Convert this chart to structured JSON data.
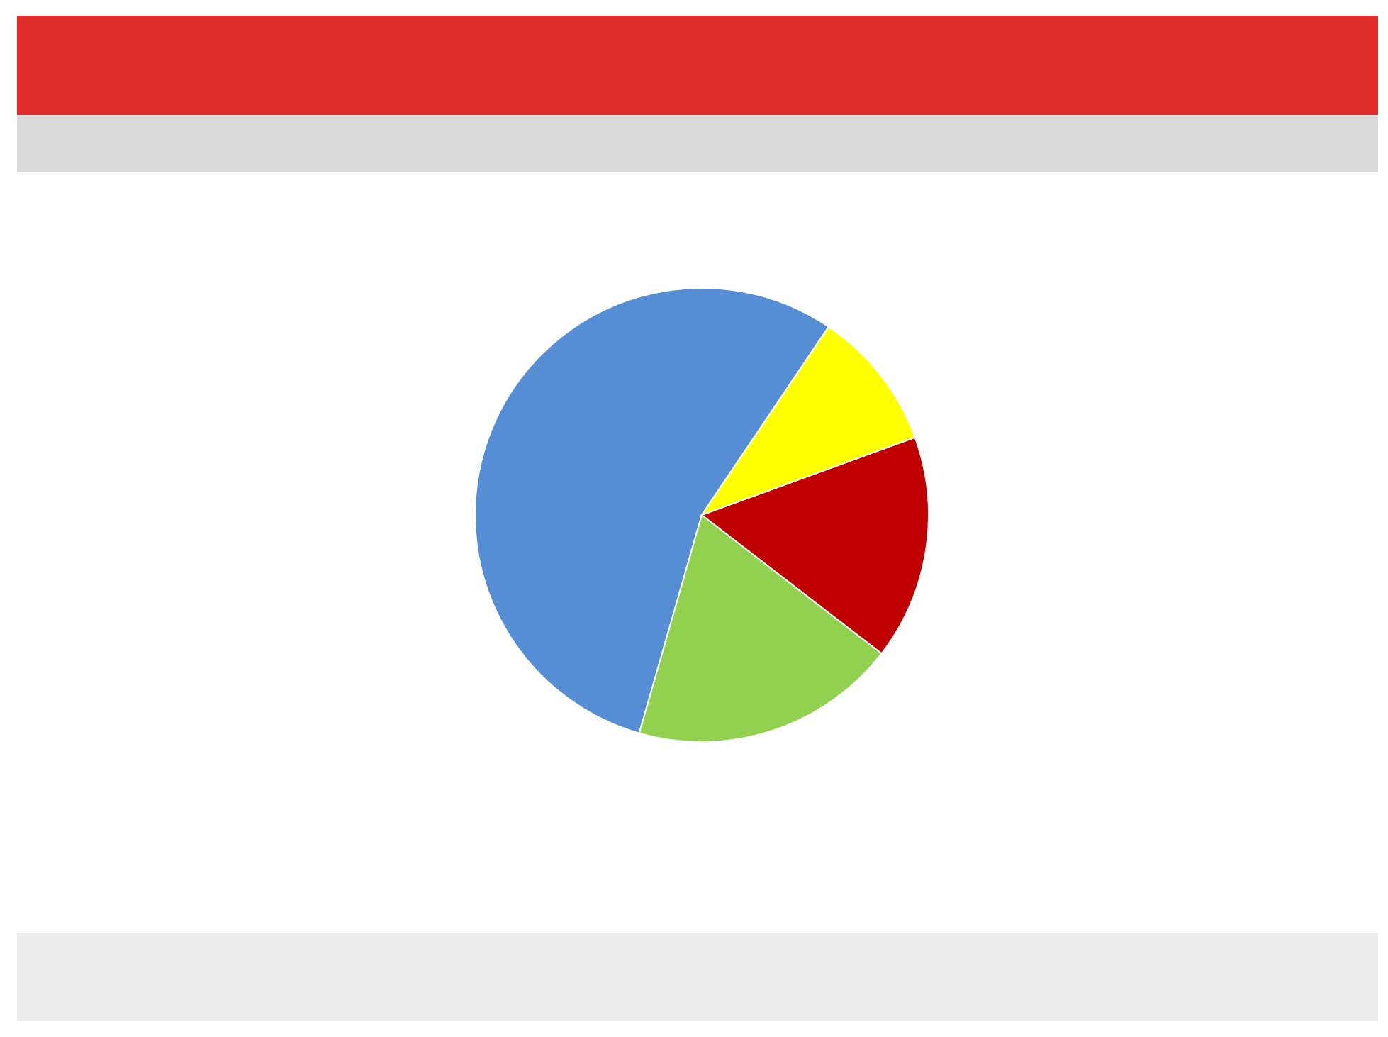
{
  "chart_data": {
    "type": "pie",
    "categories": [
      null,
      null,
      null,
      null
    ],
    "values": [
      55,
      19,
      16,
      10
    ],
    "colors": [
      "#558ed5",
      "#92d050",
      "#c00000",
      "#ffff00"
    ]
  }
}
